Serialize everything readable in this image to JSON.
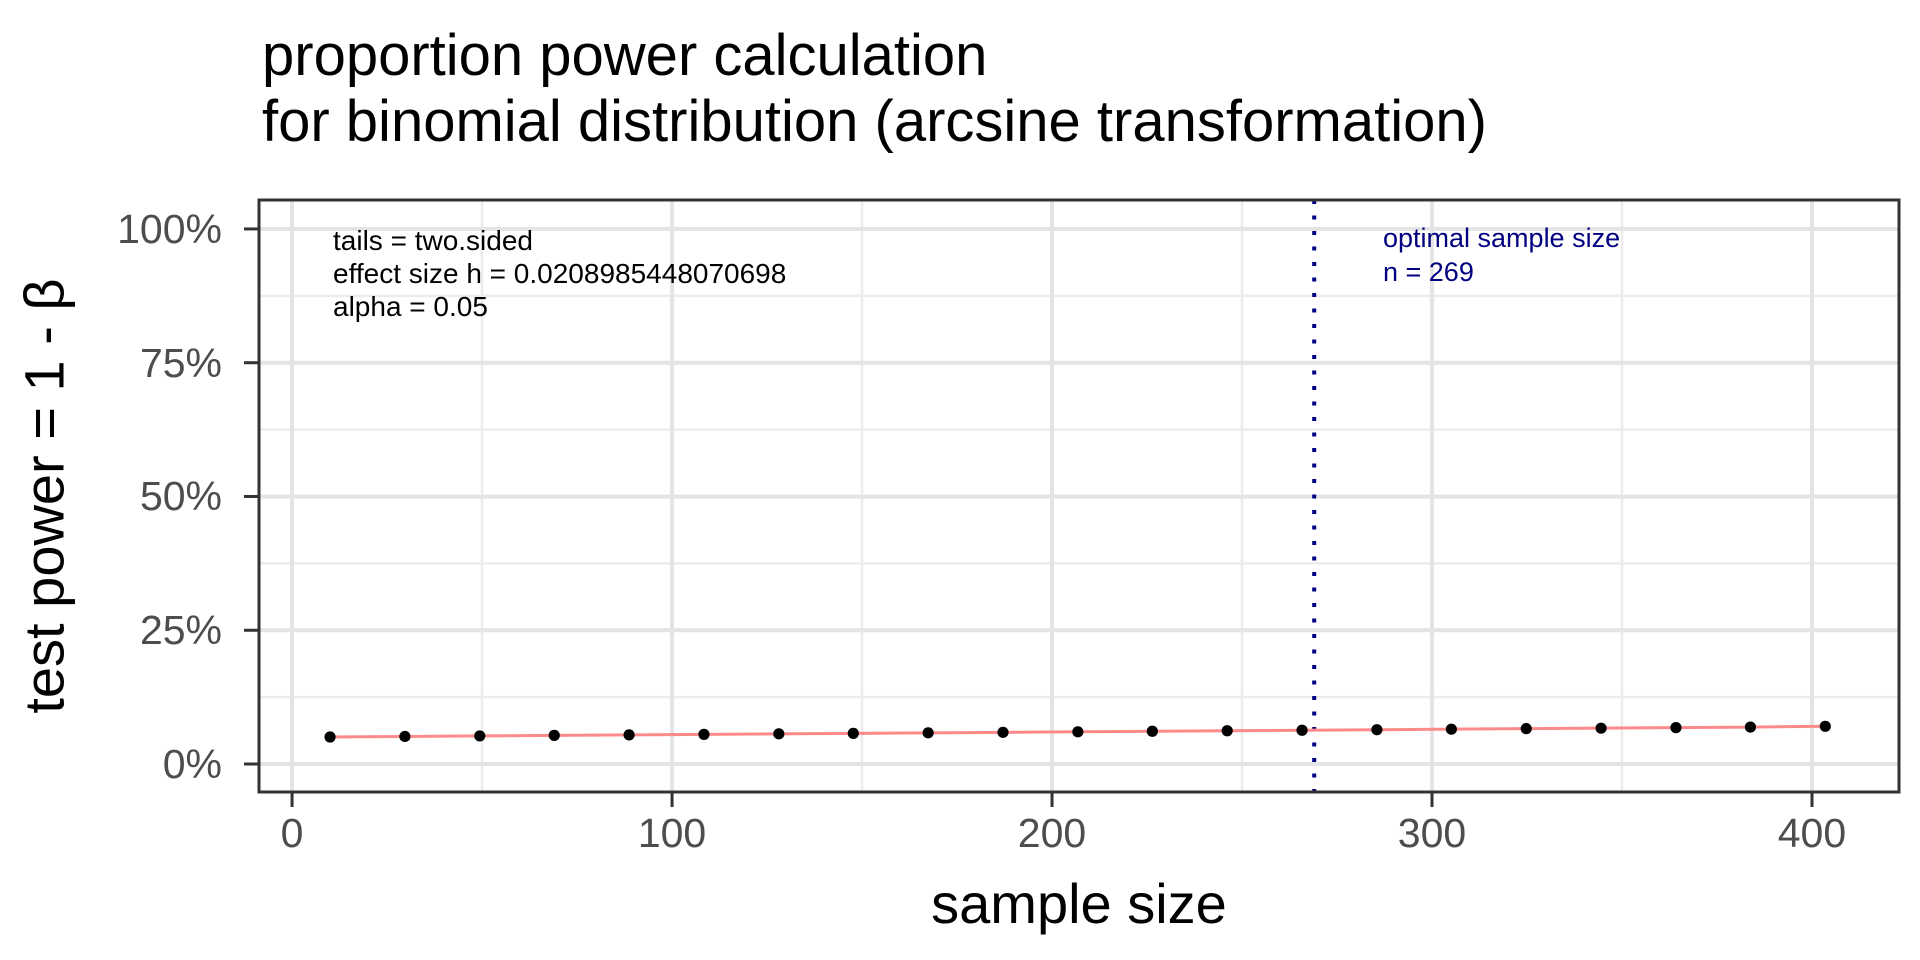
{
  "title": {
    "line1": "proportion power calculation",
    "line2": "for binomial distribution (arcsine transformation)"
  },
  "annotations": {
    "tails": "tails = two.sided",
    "effect_size": "effect size h = 0.0208985448070698",
    "alpha": "alpha = 0.05",
    "optimal_line1": "optimal sample size",
    "optimal_line2": "n = 269"
  },
  "axes": {
    "x_title": "sample size",
    "y_title": "test power = 1 - β"
  },
  "colors": {
    "series_line": "#FF8A8A",
    "point": "#000000",
    "optimal_line": "#000080",
    "optimal_text": "#000080",
    "annotation_text": "#000000",
    "grid_major": "#E4E4E4",
    "grid_minor": "#ECECEC",
    "axis_text": "#4D4D4D",
    "panel_border": "#333333",
    "background": "#FFFFFF"
  },
  "chart_data": {
    "type": "line",
    "title": "proportion power calculation for binomial distribution (arcsine transformation)",
    "xlabel": "sample size",
    "ylabel": "test power = 1 - β",
    "x": [
      10,
      29.7,
      49.4,
      69.0,
      88.7,
      108.4,
      128.1,
      147.7,
      167.4,
      187.1,
      206.8,
      226.4,
      246.1,
      265.8,
      285.5,
      305.1,
      324.8,
      344.5,
      364.2,
      383.8,
      403.5
    ],
    "series": [
      {
        "name": "test power",
        "values": [
          0.0505,
          0.0515,
          0.0525,
          0.0535,
          0.0544,
          0.0554,
          0.0564,
          0.0573,
          0.0583,
          0.0592,
          0.0602,
          0.0612,
          0.0622,
          0.0631,
          0.0641,
          0.0651,
          0.0661,
          0.067,
          0.068,
          0.069,
          0.0705
        ]
      }
    ],
    "optimal_n": 269,
    "params": {
      "tails": "two.sided",
      "effect_size_h": 0.0208985448070698,
      "alpha": 0.05
    },
    "x_ticks": [
      0,
      100,
      200,
      300,
      400
    ],
    "x_tick_labels": [
      "0",
      "100",
      "200",
      "300",
      "400"
    ],
    "x_minor_ticks": [
      50,
      150,
      250,
      350
    ],
    "y_ticks": [
      0,
      0.25,
      0.5,
      0.75,
      1.0
    ],
    "y_tick_labels": [
      "0%",
      "25%",
      "50%",
      "75%",
      "100%"
    ],
    "y_minor_ticks": [
      0.125,
      0.375,
      0.625,
      0.875
    ],
    "xlim": [
      -8.7,
      422.9
    ],
    "ylim": [
      -0.0523,
      1.0541
    ],
    "grid": true,
    "legend": false
  }
}
